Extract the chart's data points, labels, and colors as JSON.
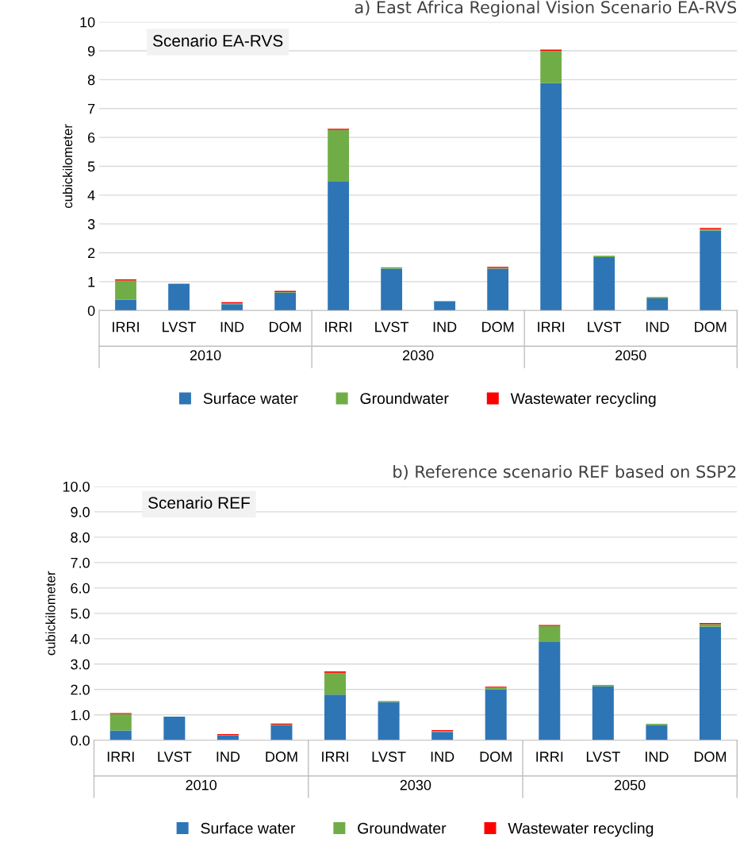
{
  "chart_data": [
    {
      "type": "bar",
      "title": "a) East Africa Regional Vision Scenario EA-RVS",
      "ylabel": "cubickilometer",
      "stacked": true,
      "categories": [
        "IRRI",
        "LVST",
        "IND",
        "DOM",
        "IRRI",
        "LVST",
        "IND",
        "DOM",
        "IRRI",
        "LVST",
        "IND",
        "DOM"
      ],
      "series": [
        {
          "name": "Surface water",
          "color": "#2e75b6",
          "values": [
            0.38,
            0.93,
            0.22,
            0.62,
            4.48,
            1.45,
            0.32,
            1.45,
            7.88,
            1.85,
            0.42,
            2.77
          ]
        },
        {
          "name": "Groundwater",
          "color": "#70ad47",
          "values": [
            0.66,
            0,
            0.03,
            0.02,
            1.78,
            0.05,
            0,
            0.02,
            1.12,
            0.05,
            0.05,
            0.05
          ]
        },
        {
          "name": "Wastewater recycling",
          "color": "#ff0000",
          "values": [
            0.04,
            0,
            0.04,
            0.04,
            0.04,
            0,
            0,
            0.04,
            0.04,
            0,
            0,
            0.04
          ]
        }
      ],
      "ylim": [
        0,
        10
      ],
      "yticks": [
        0,
        1,
        2,
        3,
        4,
        5,
        6,
        7,
        8,
        9,
        10
      ],
      "grid": "y",
      "legend": "bottom",
      "annotations": [
        "Scenario EA-RVS",
        "2010",
        "2030",
        "2050"
      ]
    },
    {
      "type": "bar",
      "title": "b) Reference scenario REF based on SSP2",
      "ylabel": "cubickilometer",
      "stacked": true,
      "categories": [
        "IRRI",
        "LVST",
        "IND",
        "DOM",
        "IRRI",
        "LVST",
        "IND",
        "DOM",
        "IRRI",
        "LVST",
        "IND",
        "DOM"
      ],
      "series": [
        {
          "name": "Surface water",
          "color": "#2e75b6",
          "values": [
            0.38,
            0.93,
            0.18,
            0.6,
            1.8,
            1.5,
            0.33,
            2.0,
            3.87,
            2.13,
            0.6,
            4.47
          ]
        },
        {
          "name": "Groundwater",
          "color": "#70ad47",
          "values": [
            0.65,
            0,
            0.02,
            0.02,
            0.86,
            0.05,
            0.03,
            0.07,
            0.63,
            0.05,
            0.05,
            0.1
          ]
        },
        {
          "name": "Wastewater recycling",
          "color": "#ff0000",
          "values": [
            0.04,
            0,
            0.04,
            0.04,
            0.05,
            0,
            0.04,
            0.04,
            0.04,
            0,
            0,
            0.05
          ]
        }
      ],
      "ylim": [
        0,
        10
      ],
      "yticks": [
        {
          "value": 0,
          "label": "0.0"
        },
        {
          "value": 1,
          "label": "1.0"
        },
        {
          "value": 2,
          "label": "2.0"
        },
        {
          "value": 3,
          "label": "3.0"
        },
        {
          "value": 4,
          "label": "4.0"
        },
        {
          "value": 5,
          "label": "5.0"
        },
        {
          "value": 6,
          "label": "6.0"
        },
        {
          "value": 7,
          "label": "7.0"
        },
        {
          "value": 8,
          "label": "8.0"
        },
        {
          "value": 9,
          "label": "9.0"
        },
        {
          "value": 10,
          "label": "10.0"
        }
      ],
      "grid": "y",
      "legend": "bottom",
      "annotations": [
        "Scenario REF",
        "2010",
        "2030",
        "2050"
      ]
    }
  ]
}
